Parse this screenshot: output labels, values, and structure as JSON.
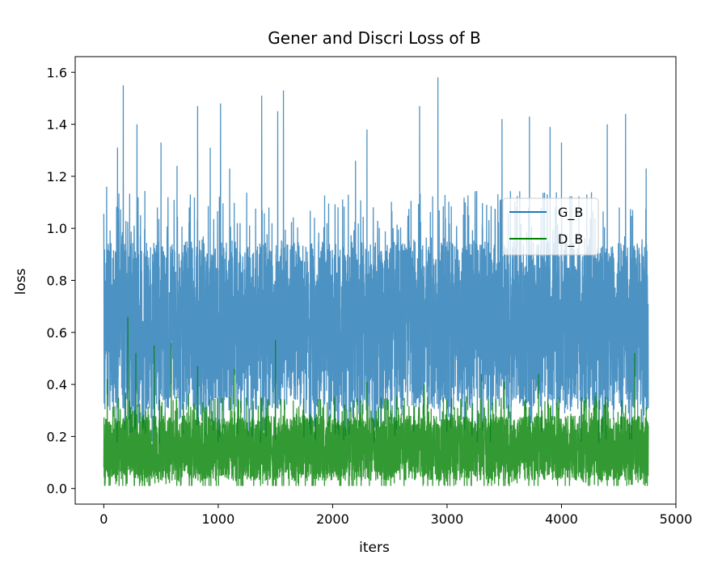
{
  "chart_data": {
    "type": "line",
    "title": "Gener and Discri Loss of B",
    "xlabel": "iters",
    "ylabel": "loss",
    "xlim": [
      -250,
      5000
    ],
    "ylim": [
      -0.06,
      1.66
    ],
    "xticks": [
      "0",
      "1000",
      "2000",
      "3000",
      "4000",
      "5000"
    ],
    "yticks": [
      "0.0",
      "0.2",
      "0.4",
      "0.6",
      "0.8",
      "1.0",
      "1.2",
      "1.4",
      "1.6"
    ],
    "grid": false,
    "legend_position": "center-right",
    "n_points": 4760,
    "series": [
      {
        "name": "G_B",
        "color": "#1f77b4",
        "alpha": 0.8,
        "typical_range": [
          0.3,
          0.95
        ],
        "envelope_min": 0.02,
        "envelope_max": 1.58,
        "peaks": [
          {
            "x": 25,
            "y": 1.16
          },
          {
            "x": 170,
            "y": 1.55
          },
          {
            "x": 290,
            "y": 1.4
          },
          {
            "x": 500,
            "y": 1.33
          },
          {
            "x": 640,
            "y": 1.24
          },
          {
            "x": 820,
            "y": 1.47
          },
          {
            "x": 930,
            "y": 1.31
          },
          {
            "x": 1020,
            "y": 1.48
          },
          {
            "x": 1100,
            "y": 1.23
          },
          {
            "x": 1380,
            "y": 1.51
          },
          {
            "x": 1520,
            "y": 1.45
          },
          {
            "x": 1570,
            "y": 1.53
          },
          {
            "x": 2200,
            "y": 1.26
          },
          {
            "x": 2300,
            "y": 1.38
          },
          {
            "x": 2760,
            "y": 1.47
          },
          {
            "x": 2920,
            "y": 1.58
          },
          {
            "x": 3480,
            "y": 1.42
          },
          {
            "x": 3720,
            "y": 1.43
          },
          {
            "x": 3900,
            "y": 1.39
          },
          {
            "x": 4000,
            "y": 1.33
          },
          {
            "x": 4400,
            "y": 1.4
          },
          {
            "x": 4560,
            "y": 1.44
          },
          {
            "x": 4740,
            "y": 1.23
          }
        ]
      },
      {
        "name": "D_B",
        "color": "#008000",
        "alpha": 0.8,
        "typical_range": [
          0.03,
          0.28
        ],
        "envelope_min": 0.01,
        "envelope_max": 0.66,
        "peaks": [
          {
            "x": 30,
            "y": 0.42
          },
          {
            "x": 210,
            "y": 0.66
          },
          {
            "x": 280,
            "y": 0.52
          },
          {
            "x": 440,
            "y": 0.55
          },
          {
            "x": 590,
            "y": 0.56
          },
          {
            "x": 820,
            "y": 0.47
          },
          {
            "x": 1140,
            "y": 0.46
          },
          {
            "x": 1500,
            "y": 0.57
          },
          {
            "x": 2300,
            "y": 0.41
          },
          {
            "x": 2800,
            "y": 0.4
          },
          {
            "x": 3300,
            "y": 0.44
          },
          {
            "x": 3500,
            "y": 0.41
          },
          {
            "x": 3800,
            "y": 0.44
          },
          {
            "x": 4300,
            "y": 0.37
          },
          {
            "x": 4640,
            "y": 0.52
          }
        ]
      }
    ]
  }
}
